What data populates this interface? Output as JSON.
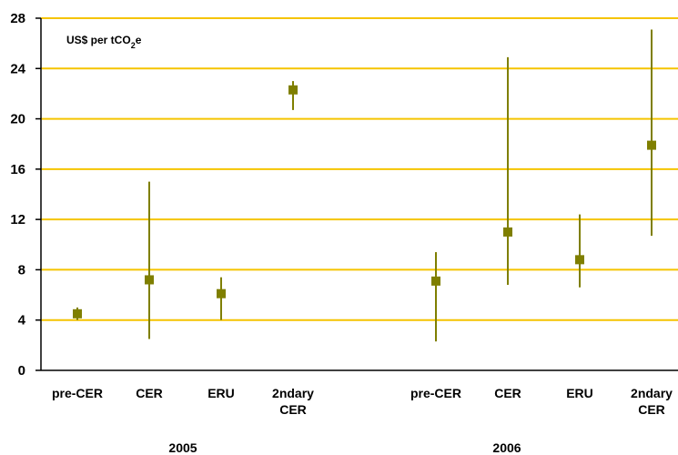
{
  "chart_data": {
    "type": "scatter",
    "ylabel": "US$ per tCO2e",
    "ylim": [
      0,
      28
    ],
    "yticks": [
      0,
      4,
      8,
      12,
      16,
      20,
      24,
      28
    ],
    "grid": true,
    "colors": {
      "grid": "#F5C400",
      "marker": "#7F7F00",
      "axis": "#000000"
    },
    "groups": [
      "2005",
      "2006"
    ],
    "categories": [
      {
        "label": [
          "pre-CER"
        ],
        "group": "2005"
      },
      {
        "label": [
          "CER"
        ],
        "group": "2005"
      },
      {
        "label": [
          "ERU"
        ],
        "group": "2005"
      },
      {
        "label": [
          "2ndary",
          "CER"
        ],
        "group": "2005"
      },
      {
        "label": [
          "pre-CER"
        ],
        "group": "2006"
      },
      {
        "label": [
          "CER"
        ],
        "group": "2006"
      },
      {
        "label": [
          "ERU"
        ],
        "group": "2006"
      },
      {
        "label": [
          "2ndary",
          "CER"
        ],
        "group": "2006"
      }
    ],
    "points": [
      {
        "category": "pre-CER 2005",
        "value": 4.5,
        "low": 4.0,
        "high": 5.0
      },
      {
        "category": "CER 2005",
        "value": 7.2,
        "low": 2.5,
        "high": 15.0
      },
      {
        "category": "ERU 2005",
        "value": 6.1,
        "low": 4.0,
        "high": 7.4
      },
      {
        "category": "2ndary CER 2005",
        "value": 22.3,
        "low": 20.7,
        "high": 23.0
      },
      {
        "category": "pre-CER 2006",
        "value": 7.1,
        "low": 2.3,
        "high": 9.4
      },
      {
        "category": "CER 2006",
        "value": 11.0,
        "low": 6.8,
        "high": 24.9
      },
      {
        "category": "ERU 2006",
        "value": 8.8,
        "low": 6.6,
        "high": 12.4
      },
      {
        "category": "2ndary CER 2006",
        "value": 17.9,
        "low": 10.7,
        "high": 27.1
      }
    ]
  }
}
